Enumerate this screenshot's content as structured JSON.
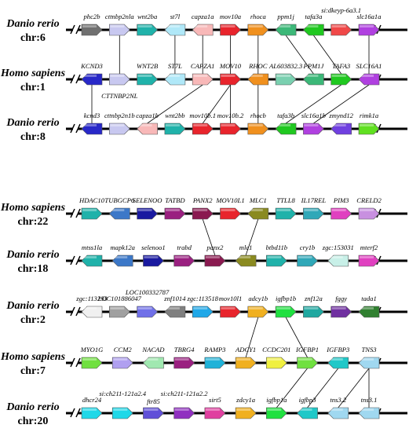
{
  "highlight_color": "#e8242c",
  "panels": [
    {
      "tracks": [
        {
          "species": "Danio rerio",
          "chromosome": "chr:6",
          "genes": [
            {
              "name": "phc2b",
              "color": "#707070",
              "dir": "right"
            },
            {
              "name": "cttnbp2nla",
              "color": "#c8c8f0",
              "dir": "right"
            },
            {
              "name": "wnt2ba",
              "color": "#20b2aa",
              "dir": "right"
            },
            {
              "name": "st7l",
              "color": "#b0e8f8",
              "dir": "left"
            },
            {
              "name": "capza1a",
              "color": "#f8b8b8",
              "dir": "left"
            },
            {
              "name": "mov10a",
              "color": "#e8242c",
              "dir": "right",
              "highlight": true
            },
            {
              "name": "rhoca",
              "color": "#f0901e",
              "dir": "right"
            },
            {
              "name": "ppm1j",
              "color": "#3cb878",
              "dir": "left"
            },
            {
              "name": "tafa3a",
              "color": "#20c820",
              "dir": "left"
            },
            {
              "name": "si:dkeyp-6a3.1",
              "color": "#f04848",
              "dir": "right"
            },
            {
              "name": "slc16a1a",
              "color": "#b040e0",
              "dir": "right"
            }
          ]
        },
        {
          "species": "Homo sapiens",
          "chromosome": "chr:1",
          "genes": [
            {
              "name": "KCND3",
              "color": "#2828c8",
              "dir": "left"
            },
            {
              "name": "CTTNBP2NL",
              "color": "#c8c8f0",
              "dir": "right"
            },
            {
              "name": "WNT2B",
              "color": "#20b2aa",
              "dir": "right"
            },
            {
              "name": "ST7L",
              "color": "#b0e8f8",
              "dir": "left"
            },
            {
              "name": "CAPZA1",
              "color": "#f8b8b8",
              "dir": "right"
            },
            {
              "name": "MOV10",
              "color": "#e8242c",
              "dir": "right",
              "highlight": true
            },
            {
              "name": "RHOC",
              "color": "#f0901e",
              "dir": "left"
            },
            {
              "name": "AL603832.3",
              "color": "#7ad0b0",
              "dir": "right"
            },
            {
              "name": "PPM1J",
              "color": "#3cb878",
              "dir": "left"
            },
            {
              "name": "TAFA3",
              "color": "#20c820",
              "dir": "right"
            },
            {
              "name": "SLC16A1",
              "color": "#b040e0",
              "dir": "left"
            }
          ]
        },
        {
          "species": "Danio rerio",
          "chromosome": "chr:8",
          "genes": [
            {
              "name": "kcnd3",
              "color": "#2828c8",
              "dir": "left"
            },
            {
              "name": "cttnbp2n1b",
              "color": "#c8c8f0",
              "dir": "right"
            },
            {
              "name": "capza1b",
              "color": "#f8b8b8",
              "dir": "left"
            },
            {
              "name": "wnt2bb",
              "color": "#20b2aa",
              "dir": "right"
            },
            {
              "name": "mov10b.1",
              "color": "#e8242c",
              "dir": "right",
              "highlight": true
            },
            {
              "name": "mov10b.2",
              "color": "#e8242c",
              "dir": "right",
              "highlight": true
            },
            {
              "name": "rhocb",
              "color": "#f0901e",
              "dir": "right"
            },
            {
              "name": "tafa3b",
              "color": "#20c820",
              "dir": "left"
            },
            {
              "name": "slc16a1b",
              "color": "#b040e0",
              "dir": "right"
            },
            {
              "name": "zmynd12",
              "color": "#7040e0",
              "dir": "left"
            },
            {
              "name": "rimk1a",
              "color": "#60e020",
              "dir": "right"
            }
          ]
        }
      ]
    },
    {
      "tracks": [
        {
          "species": "Homo sapiens",
          "chromosome": "chr:22",
          "genes": [
            {
              "name": "HDAC10",
              "color": "#20b2aa",
              "dir": "right"
            },
            {
              "name": "TUBGCP6",
              "color": "#3c78c8",
              "dir": "left"
            },
            {
              "name": "SELENOO",
              "color": "#1a1aa0",
              "dir": "right"
            },
            {
              "name": "TATBD",
              "color": "#9a2080",
              "dir": "right"
            },
            {
              "name": "PANX2",
              "color": "#8a1a50",
              "dir": "right"
            },
            {
              "name": "MOV10L1",
              "color": "#e8242c",
              "dir": "right",
              "highlight": true
            },
            {
              "name": "MLC1",
              "color": "#8a8a20",
              "dir": "left"
            },
            {
              "name": "TTLL8",
              "color": "#20b2aa",
              "dir": "right"
            },
            {
              "name": "IL17REL",
              "color": "#30a8b8",
              "dir": "right"
            },
            {
              "name": "PIM3",
              "color": "#e040c0",
              "dir": "right"
            },
            {
              "name": "CRELD2",
              "color": "#c890e0",
              "dir": "right"
            }
          ]
        },
        {
          "species": "Danio rerio",
          "chromosome": "chr:18",
          "genes": [
            {
              "name": "mtss1la",
              "color": "#20b2aa",
              "dir": "left"
            },
            {
              "name": "mapk12a",
              "color": "#3c78c8",
              "dir": "left"
            },
            {
              "name": "selenoo1",
              "color": "#1a1aa0",
              "dir": "right"
            },
            {
              "name": "trabd",
              "color": "#9a2080",
              "dir": "right"
            },
            {
              "name": "panx2",
              "color": "#8a1a50",
              "dir": "right"
            },
            {
              "name": "mlc1",
              "color": "#8a8a20",
              "dir": "left"
            },
            {
              "name": "btbd11b",
              "color": "#20b2aa",
              "dir": "right"
            },
            {
              "name": "cry1b",
              "color": "#30a8b8",
              "dir": "right"
            },
            {
              "name": "zgc:153031",
              "color": "#c8f0e8",
              "dir": "left"
            },
            {
              "name": "mterf2",
              "color": "#e040c0",
              "dir": "right"
            }
          ]
        }
      ]
    },
    {
      "tracks": [
        {
          "species": "Danio rerio",
          "chromosome": "chr:2",
          "genes": [
            {
              "name": "zgc:113293",
              "color": "#f0f0f0",
              "dir": "left"
            },
            {
              "name": "LOC101886047",
              "color": "#a0a0a0",
              "dir": "right"
            },
            {
              "name": "LOC100332787",
              "color": "#7070e8",
              "dir": "right"
            },
            {
              "name": "znf1014",
              "color": "#808080",
              "dir": "left"
            },
            {
              "name": "zgc:113518",
              "color": "#20a8e8",
              "dir": "right"
            },
            {
              "name": "mov10l1",
              "color": "#e8242c",
              "dir": "right",
              "highlight": true
            },
            {
              "name": "adcy1b",
              "color": "#f0b020",
              "dir": "right"
            },
            {
              "name": "igfbp1b",
              "color": "#20e040",
              "dir": "right"
            },
            {
              "name": "znf12a",
              "color": "#20a8a0",
              "dir": "right"
            },
            {
              "name": "fggy",
              "color": "#7030a0",
              "dir": "right"
            },
            {
              "name": "tada1",
              "color": "#308030",
              "dir": "left"
            }
          ]
        },
        {
          "species": "Homo sapiens",
          "chromosome": "chr:7",
          "genes": [
            {
              "name": "MYO1G",
              "color": "#70e040",
              "dir": "right"
            },
            {
              "name": "CCM2",
              "color": "#b0a0f0",
              "dir": "right"
            },
            {
              "name": "NACAD",
              "color": "#a0e8b0",
              "dir": "left"
            },
            {
              "name": "TBRG4",
              "color": "#9a2080",
              "dir": "right"
            },
            {
              "name": "RAMP3",
              "color": "#20b2d8",
              "dir": "right"
            },
            {
              "name": "ADCY1",
              "color": "#f0b020",
              "dir": "right"
            },
            {
              "name": "CCDC201",
              "color": "#f0f040",
              "dir": "right"
            },
            {
              "name": "IGFBP1",
              "color": "#70e040",
              "dir": "right"
            },
            {
              "name": "IGFBP3",
              "color": "#20c8c8",
              "dir": "left"
            },
            {
              "name": "TNS3",
              "color": "#a0d8f0",
              "dir": "left"
            }
          ]
        },
        {
          "species": "Danio rerio",
          "chromosome": "chr:20",
          "genes": [
            {
              "name": "dhcr24",
              "color": "#20d8e8",
              "dir": "right"
            },
            {
              "name": "si:ch211-121a2.4",
              "color": "#20d8e8",
              "dir": "right"
            },
            {
              "name": "ftr85",
              "color": "#6050d8",
              "dir": "right"
            },
            {
              "name": "si:ch211-121a2.2",
              "color": "#9030c0",
              "dir": "right"
            },
            {
              "name": "sirt5",
              "color": "#e040a0",
              "dir": "right"
            },
            {
              "name": "zdcy1a",
              "color": "#f0b020",
              "dir": "right"
            },
            {
              "name": "igfbp1a",
              "color": "#20e040",
              "dir": "right"
            },
            {
              "name": "igfbp3",
              "color": "#20c8c8",
              "dir": "left"
            },
            {
              "name": "tns3.2",
              "color": "#a0d8f0",
              "dir": "left"
            },
            {
              "name": "tns3.1",
              "color": "#a0d8f0",
              "dir": "left"
            }
          ]
        }
      ]
    }
  ]
}
